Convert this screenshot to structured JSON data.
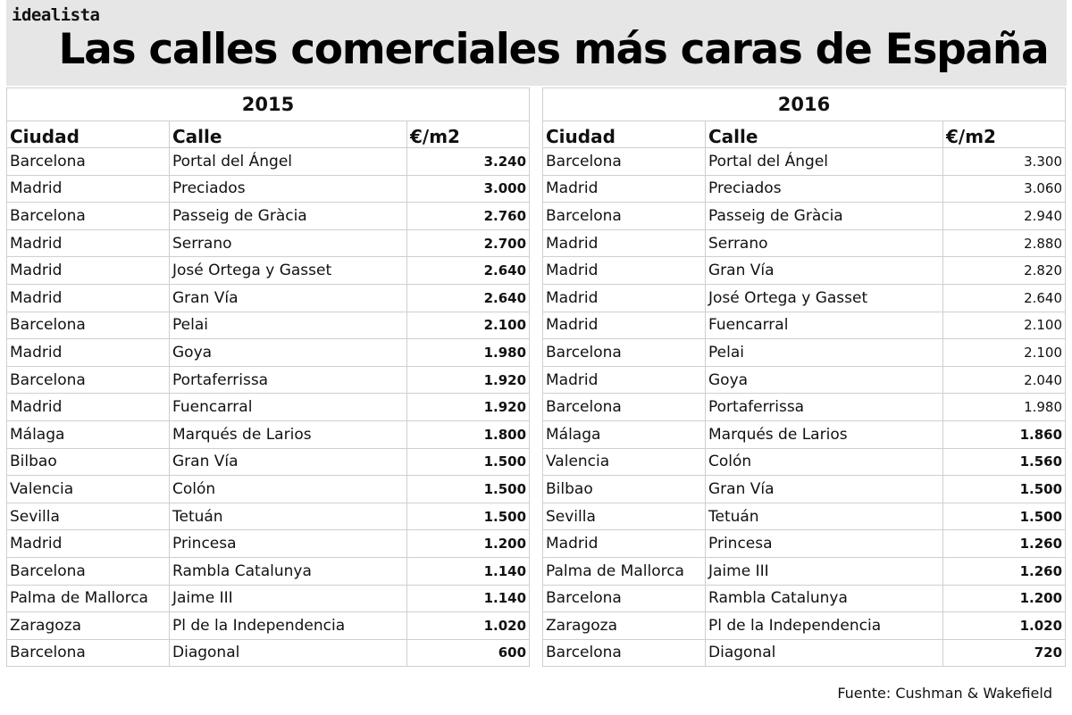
{
  "brand": "idealista",
  "title": "Las calles comerciales más caras de España",
  "columns": [
    "Ciudad",
    "Calle",
    "€/m2"
  ],
  "source": "Fuente: Cushman & Wakefield",
  "chart_data": {
    "type": "table",
    "title": "Las calles comerciales más caras de España",
    "tables": [
      {
        "year": "2015",
        "rows": [
          {
            "city": "Barcelona",
            "street": "Portal del Ángel",
            "price": "3.240",
            "bold": true
          },
          {
            "city": "Madrid",
            "street": "Preciados",
            "price": "3.000",
            "bold": true
          },
          {
            "city": "Barcelona",
            "street": "Passeig de Gràcia",
            "price": "2.760",
            "bold": true
          },
          {
            "city": "Madrid",
            "street": "Serrano",
            "price": "2.700",
            "bold": true
          },
          {
            "city": "Madrid",
            "street": "José Ortega y Gasset",
            "price": "2.640",
            "bold": true
          },
          {
            "city": "Madrid",
            "street": "Gran Vía",
            "price": "2.640",
            "bold": true
          },
          {
            "city": "Barcelona",
            "street": "Pelai",
            "price": "2.100",
            "bold": true
          },
          {
            "city": "Madrid",
            "street": "Goya",
            "price": "1.980",
            "bold": true
          },
          {
            "city": "Barcelona",
            "street": "Portaferrissa",
            "price": "1.920",
            "bold": true
          },
          {
            "city": "Madrid",
            "street": "Fuencarral",
            "price": "1.920",
            "bold": true
          },
          {
            "city": "Málaga",
            "street": "Marqués de Larios",
            "price": "1.800",
            "bold": true
          },
          {
            "city": "Bilbao",
            "street": "Gran Vía",
            "price": "1.500",
            "bold": true
          },
          {
            "city": "Valencia",
            "street": "Colón",
            "price": "1.500",
            "bold": true
          },
          {
            "city": "Sevilla",
            "street": "Tetuán",
            "price": "1.500",
            "bold": true
          },
          {
            "city": "Madrid",
            "street": "Princesa",
            "price": "1.200",
            "bold": true
          },
          {
            "city": "Barcelona",
            "street": "Rambla Catalunya",
            "price": "1.140",
            "bold": true
          },
          {
            "city": "Palma de Mallorca",
            "street": "Jaime III",
            "price": "1.140",
            "bold": true
          },
          {
            "city": "Zaragoza",
            "street": "Pl de la Independencia",
            "price": "1.020",
            "bold": true
          },
          {
            "city": "Barcelona",
            "street": "Diagonal",
            "price": "600",
            "bold": true
          }
        ]
      },
      {
        "year": "2016",
        "rows": [
          {
            "city": "Barcelona",
            "street": "Portal del Ángel",
            "price": "3.300",
            "bold": false
          },
          {
            "city": "Madrid",
            "street": "Preciados",
            "price": "3.060",
            "bold": false
          },
          {
            "city": "Barcelona",
            "street": "Passeig de Gràcia",
            "price": "2.940",
            "bold": false
          },
          {
            "city": "Madrid",
            "street": "Serrano",
            "price": "2.880",
            "bold": false
          },
          {
            "city": "Madrid",
            "street": "Gran Vía",
            "price": "2.820",
            "bold": false
          },
          {
            "city": "Madrid",
            "street": "José Ortega y Gasset",
            "price": "2.640",
            "bold": false
          },
          {
            "city": "Madrid",
            "street": "Fuencarral",
            "price": "2.100",
            "bold": false
          },
          {
            "city": "Barcelona",
            "street": "Pelai",
            "price": "2.100",
            "bold": false
          },
          {
            "city": "Madrid",
            "street": "Goya",
            "price": "2.040",
            "bold": false
          },
          {
            "city": "Barcelona",
            "street": "Portaferrissa",
            "price": "1.980",
            "bold": false
          },
          {
            "city": "Málaga",
            "street": "Marqués de Larios",
            "price": "1.860",
            "bold": true
          },
          {
            "city": "Valencia",
            "street": "Colón",
            "price": "1.560",
            "bold": true
          },
          {
            "city": "Bilbao",
            "street": "Gran Vía",
            "price": "1.500",
            "bold": true
          },
          {
            "city": "Sevilla",
            "street": "Tetuán",
            "price": "1.500",
            "bold": true
          },
          {
            "city": "Madrid",
            "street": "Princesa",
            "price": "1.260",
            "bold": true
          },
          {
            "city": "Palma de Mallorca",
            "street": "Jaime III",
            "price": "1.260",
            "bold": true
          },
          {
            "city": "Barcelona",
            "street": "Rambla Catalunya",
            "price": "1.200",
            "bold": true
          },
          {
            "city": "Zaragoza",
            "street": "Pl de la Independencia",
            "price": "1.020",
            "bold": true
          },
          {
            "city": "Barcelona",
            "street": "Diagonal",
            "price": "720",
            "bold": true
          }
        ]
      }
    ]
  }
}
